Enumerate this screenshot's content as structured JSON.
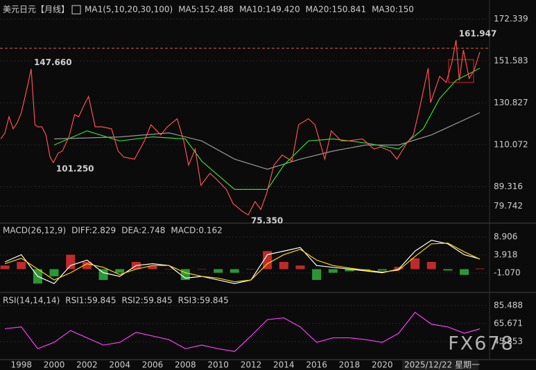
{
  "chart_data": [
    {
      "type": "line",
      "title": "美元日元",
      "subtitle": "【月线】",
      "header": [
        {
          "text": "MA1(5,10,20,30,100)",
          "color": "#ffffff"
        },
        {
          "text": "MA5:152.488",
          "color": "#ffffff"
        },
        {
          "text": "MA10:149.420",
          "color": "#ffd700"
        },
        {
          "text": "MA20:150.841",
          "color": "#ff3cff"
        },
        {
          "text": "MA30:150",
          "color": "#33dd33"
        }
      ],
      "xlim": [
        1996.7,
        2026.5
      ],
      "ylim": [
        72.0,
        180.08
      ],
      "yticks": [
        172.339,
        151.583,
        130.827,
        110.072,
        89.316,
        79.742
      ],
      "grid": true,
      "reference_line": 157.9,
      "series": [
        {
          "color": "#9a9a9a",
          "x": [
            2000,
            2004,
            2007,
            2009,
            2011,
            2013,
            2015,
            2017,
            2019,
            2021,
            2023,
            2025.95
          ],
          "values": [
            113,
            114,
            116,
            112,
            103,
            98,
            103,
            107,
            110,
            110,
            115,
            126
          ]
        },
        {
          "color": "#33dd33",
          "x": [
            2000,
            2002,
            2004,
            2006,
            2008,
            2009,
            2011,
            2013,
            2014,
            2015.5,
            2017,
            2019,
            2021,
            2022.5,
            2023.5,
            2024.5,
            2025.95
          ],
          "values": [
            110,
            117,
            112,
            114,
            113,
            102,
            88,
            88,
            100,
            112,
            113,
            111,
            108,
            118,
            133,
            142,
            148
          ]
        },
        {
          "color": "#ff5050",
          "x": [
            1996.75,
            1997.0,
            1997.25,
            1997.5,
            1997.75,
            1998.0,
            1998.4,
            1998.6,
            1998.83,
            1999.0,
            1999.25,
            1999.5,
            1999.75,
            1999.95,
            2000.25,
            2000.5,
            2000.9,
            2001.25,
            2001.5,
            2001.9,
            2002.1,
            2002.5,
            2002.9,
            2003.5,
            2003.9,
            2004.25,
            2004.9,
            2005.5,
            2005.9,
            2006.5,
            2006.9,
            2007.5,
            2007.9,
            2008.2,
            2008.6,
            2008.95,
            2009.5,
            2009.9,
            2010.5,
            2010.9,
            2011.5,
            2011.83,
            2012.25,
            2012.6,
            2012.95,
            2013.4,
            2013.9,
            2014.5,
            2014.9,
            2015.5,
            2015.9,
            2016.5,
            2016.9,
            2017.5,
            2017.9,
            2018.8,
            2019.5,
            2019.9,
            2020.5,
            2020.9,
            2021.5,
            2021.9,
            2022.3,
            2022.8,
            2022.95,
            2023.5,
            2023.9,
            2024.25,
            2024.5,
            2024.7,
            2024.95,
            2025.3,
            2025.6,
            2025.95
          ],
          "values": [
            113,
            116,
            124,
            118,
            121,
            126,
            140,
            147.66,
            120,
            119,
            119,
            115,
            104,
            101.25,
            106,
            107,
            114,
            125,
            124,
            131,
            134,
            119,
            119,
            118,
            107,
            104,
            103,
            112,
            120,
            115,
            119,
            123,
            112,
            100,
            108,
            90,
            96,
            93,
            88,
            81,
            77,
            75.35,
            82,
            78,
            86,
            100,
            105,
            102,
            120,
            123,
            120,
            103,
            117,
            112,
            112,
            113,
            108,
            109,
            107,
            103,
            111,
            115,
            129,
            148,
            131,
            144,
            141,
            151,
            161.947,
            142,
            157,
            143,
            147,
            156
          ]
        }
      ],
      "annotations": [
        {
          "x": 1998.6,
          "value": 147.66,
          "label": "147.660",
          "color": "#ff4060"
        },
        {
          "x": 1999.95,
          "value": 101.25,
          "label": "101.250",
          "color": "#66dd99"
        },
        {
          "x": 2011.83,
          "value": 75.35,
          "label": "75.350",
          "color": "#66dd99"
        },
        {
          "x": 2024.5,
          "value": 161.947,
          "label": "161.947",
          "color": "#ff4060"
        }
      ]
    },
    {
      "type": "line",
      "header": [
        {
          "text": "MACD(26,12,9)",
          "color": "#ffffff"
        },
        {
          "text": "DIFF:2.829",
          "color": "#ffffff"
        },
        {
          "text": "DEA:2.748",
          "color": "#ffd700"
        },
        {
          "text": "MACD:0.162",
          "color": "#ff3cff"
        }
      ],
      "xlim": [
        1996.7,
        2026.5
      ],
      "ylim": [
        -6.06,
        12.17
      ],
      "yticks": [
        8.906,
        3.918,
        {
          "value": -1.07,
          "label": "-1.070"
        }
      ],
      "x": [
        1997,
        1998,
        1999,
        2000,
        2001,
        2002,
        2003,
        2004,
        2005,
        2006,
        2007,
        2008,
        2009,
        2010,
        2011,
        2012,
        2013,
        2014,
        2015,
        2016,
        2017,
        2018,
        2019,
        2020,
        2021,
        2022,
        2023,
        2024,
        2025,
        2025.95
      ],
      "series": [
        {
          "type": "bar",
          "up_color": "#e03030",
          "down_color": "#30b040",
          "values": [
            1,
            2,
            -4,
            -2,
            4,
            2,
            -3,
            -1,
            2,
            1,
            0,
            -3,
            0,
            -1,
            -1,
            0,
            5,
            2,
            1,
            -3,
            -1,
            -0.6,
            -0.4,
            -0.4,
            0.6,
            3,
            2,
            -0.4,
            -1.6,
            0.162
          ]
        },
        {
          "color": "#ffffff",
          "values": [
            2,
            4,
            -2,
            -4,
            1,
            2.5,
            -1,
            -2,
            1,
            1.5,
            1,
            -2.5,
            -2,
            -3,
            -4,
            -3,
            4,
            5,
            6,
            1,
            0.5,
            0,
            -0.5,
            -1,
            0,
            5,
            8,
            7,
            4,
            2.829
          ]
        },
        {
          "color": "#ffd700",
          "values": [
            1.5,
            3,
            0,
            -3,
            -1,
            1.5,
            0.5,
            -1.5,
            0,
            1,
            1,
            -1,
            -2,
            -2.5,
            -3.5,
            -3,
            1.5,
            4,
            5.5,
            2.5,
            1,
            0.3,
            -0.3,
            -0.8,
            -0.3,
            3.5,
            7,
            7.2,
            4.8,
            2.748
          ]
        }
      ]
    },
    {
      "type": "line",
      "header": [
        {
          "text": "RSI(14,14,14)",
          "color": "#ffffff"
        },
        {
          "text": "RSI1:59.845",
          "color": "#ffffff"
        },
        {
          "text": "RSI2:59.845",
          "color": "#ffd700"
        },
        {
          "text": "RSI3:59.845",
          "color": "#ff3cff"
        }
      ],
      "xlim": [
        1996.7,
        2026.5
      ],
      "ylim": [
        26.79,
        97.68
      ],
      "yticks": [
        85.488,
        65.671,
        45.853
      ],
      "x": [
        1997,
        1998,
        1999,
        2000,
        2001,
        2002,
        2003,
        2004,
        2005,
        2006,
        2007,
        2008,
        2009,
        2010,
        2011,
        2012,
        2013,
        2014,
        2015,
        2016,
        2017,
        2018,
        2019,
        2020,
        2021,
        2022,
        2023,
        2024,
        2025,
        2025.95
      ],
      "series": [
        {
          "color": "#ff3cff",
          "values": [
            60,
            62,
            38,
            45,
            58,
            50,
            42,
            45,
            56,
            52,
            48,
            38,
            42,
            38,
            35,
            52,
            70,
            72,
            62,
            45,
            50,
            50,
            48,
            45,
            55,
            78,
            65,
            62,
            55,
            59.845
          ]
        }
      ],
      "xticks": [
        1998,
        2000,
        2002,
        2004,
        2006,
        2008,
        2010,
        2012,
        2014,
        2016,
        2018,
        2020
      ],
      "date_label": "2025/12/22 星期一",
      "watermark": "FX678"
    }
  ]
}
